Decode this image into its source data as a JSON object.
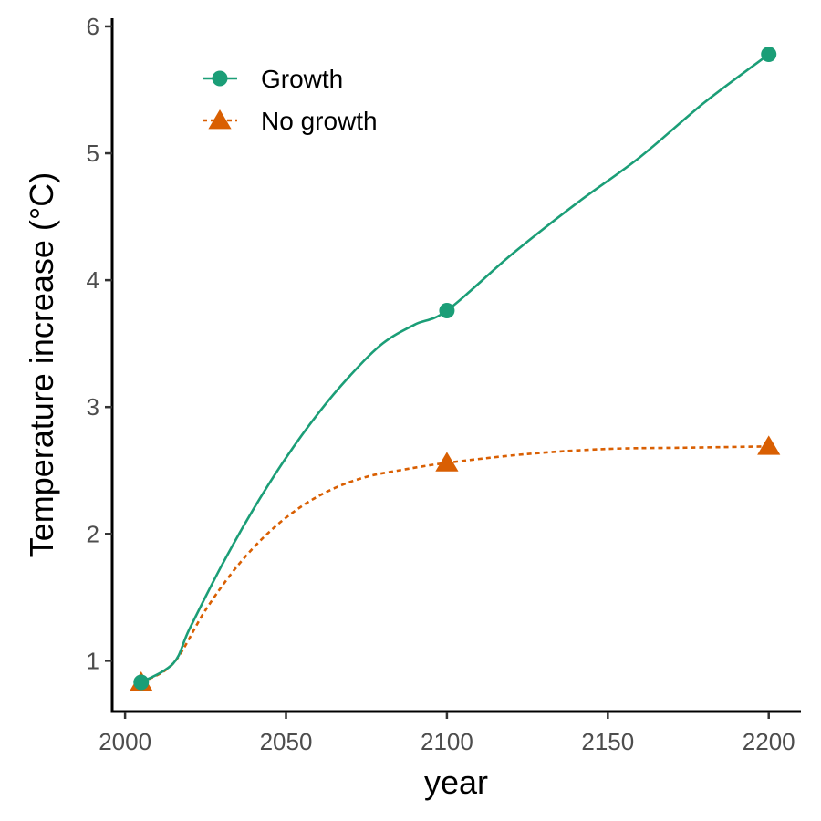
{
  "chart_data": {
    "type": "line",
    "xlabel": "year",
    "ylabel": "Temperature increase  (°C)",
    "xlim": [
      1996,
      2210
    ],
    "ylim": [
      0.6,
      6.05
    ],
    "x_ticks": [
      2000,
      2050,
      2100,
      2150,
      2200
    ],
    "y_ticks": [
      1,
      2,
      3,
      4,
      5,
      6
    ],
    "grid": false,
    "legend_position": "top-left",
    "series": [
      {
        "name": "Growth",
        "color": "#1b9e77",
        "line_style": "solid",
        "marker": "circle",
        "curve": [
          [
            2005,
            0.83
          ],
          [
            2015,
            0.98
          ],
          [
            2020,
            1.25
          ],
          [
            2030,
            1.75
          ],
          [
            2040,
            2.2
          ],
          [
            2050,
            2.6
          ],
          [
            2060,
            2.95
          ],
          [
            2070,
            3.25
          ],
          [
            2080,
            3.5
          ],
          [
            2090,
            3.65
          ],
          [
            2100,
            3.76
          ],
          [
            2120,
            4.2
          ],
          [
            2140,
            4.6
          ],
          [
            2160,
            4.97
          ],
          [
            2180,
            5.4
          ],
          [
            2200,
            5.78
          ]
        ],
        "markers": [
          [
            2005,
            0.83
          ],
          [
            2100,
            3.76
          ],
          [
            2200,
            5.78
          ]
        ]
      },
      {
        "name": "No growth",
        "color": "#d95f02",
        "line_style": "dotted",
        "marker": "triangle",
        "curve": [
          [
            2005,
            0.83
          ],
          [
            2015,
            0.98
          ],
          [
            2025,
            1.4
          ],
          [
            2035,
            1.75
          ],
          [
            2045,
            2.02
          ],
          [
            2055,
            2.22
          ],
          [
            2065,
            2.36
          ],
          [
            2075,
            2.45
          ],
          [
            2085,
            2.5
          ],
          [
            2100,
            2.56
          ],
          [
            2125,
            2.63
          ],
          [
            2150,
            2.67
          ],
          [
            2175,
            2.68
          ],
          [
            2200,
            2.69
          ]
        ],
        "markers": [
          [
            2005,
            0.83
          ],
          [
            2100,
            2.56
          ],
          [
            2200,
            2.69
          ]
        ]
      }
    ]
  }
}
